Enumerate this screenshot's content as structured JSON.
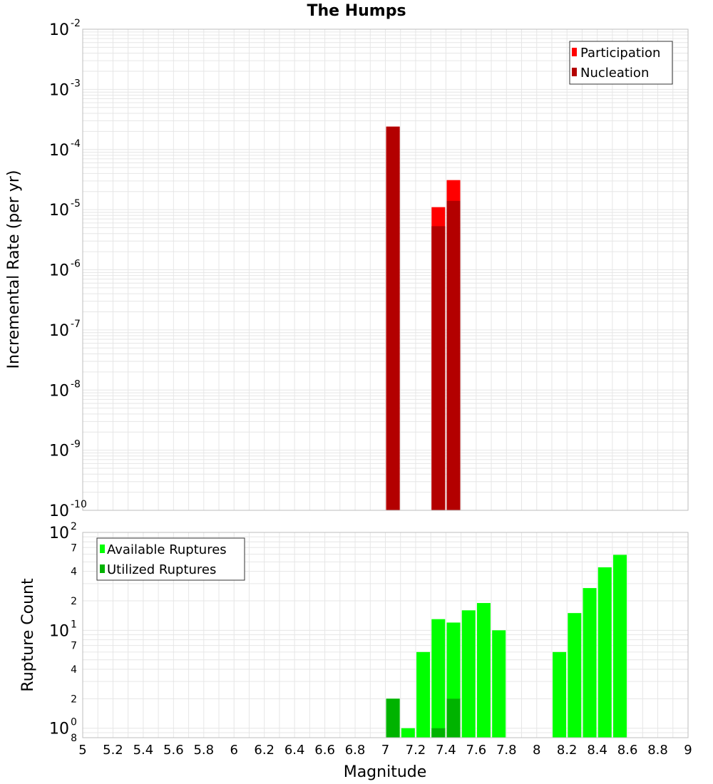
{
  "colors": {
    "participation": "#ff0000",
    "nucleation": "#b30000",
    "available": "#00ff00",
    "utilized": "#00b300",
    "grid": "#e6e6e6",
    "frame": "#bdbdbd"
  },
  "chart_data": [
    {
      "type": "bar",
      "title": "The Humps",
      "xlabel": "Magnitude",
      "ylabel": "Incremental Rate (per yr)",
      "yscale": "log",
      "ylim": [
        1e-10,
        0.01
      ],
      "xlim": [
        5,
        9
      ],
      "grid": true,
      "legend_position": "top-right",
      "y_tick_labels": [
        {
          "value": 0.01,
          "base": "10",
          "exp": "-2"
        },
        {
          "value": 0.001,
          "base": "10",
          "exp": "-3"
        },
        {
          "value": 0.0001,
          "base": "10",
          "exp": "-4"
        },
        {
          "value": 1e-05,
          "base": "10",
          "exp": "-5"
        },
        {
          "value": 1e-06,
          "base": "10",
          "exp": "-6"
        },
        {
          "value": 1e-07,
          "base": "10",
          "exp": "-7"
        },
        {
          "value": 1e-08,
          "base": "10",
          "exp": "-8"
        },
        {
          "value": 1e-09,
          "base": "10",
          "exp": "-9"
        },
        {
          "value": 1e-10,
          "base": "10",
          "exp": "-10"
        }
      ],
      "series": [
        {
          "name": "Participation",
          "color": "#ff0000",
          "x": [
            7.05,
            7.35,
            7.45
          ],
          "values": [
            0.00024,
            1.1e-05,
            3.1e-05
          ]
        },
        {
          "name": "Nucleation",
          "color": "#b30000",
          "x": [
            7.05,
            7.35,
            7.45
          ],
          "values": [
            0.00024,
            5.3e-06,
            1.4e-05
          ]
        }
      ]
    },
    {
      "type": "bar",
      "ylabel": "Rupture Count",
      "xlabel": "Magnitude",
      "yscale": "log",
      "ylim": [
        0.8,
        100
      ],
      "xlim": [
        5,
        9
      ],
      "grid": true,
      "legend_position": "top-left",
      "y_tick_labels": [
        {
          "value": 100,
          "base": "10",
          "exp": "2"
        },
        {
          "value": 10,
          "base": "10",
          "exp": "1"
        },
        {
          "value": 1,
          "base": "10",
          "exp": "0"
        }
      ],
      "y_minor_tick_labels": [
        {
          "value": 70,
          "label": "7"
        },
        {
          "value": 40,
          "label": "4"
        },
        {
          "value": 20,
          "label": "2"
        },
        {
          "value": 7,
          "label": "7"
        },
        {
          "value": 4,
          "label": "4"
        },
        {
          "value": 2,
          "label": "2"
        },
        {
          "value": 0.8,
          "label": "8"
        }
      ],
      "x_ticks": [
        "5",
        "5.2",
        "5.4",
        "5.6",
        "5.8",
        "6",
        "6.2",
        "6.4",
        "6.6",
        "6.8",
        "7",
        "7.2",
        "7.4",
        "7.6",
        "7.8",
        "8",
        "8.2",
        "8.4",
        "8.6",
        "8.8",
        "9"
      ],
      "series": [
        {
          "name": "Available Ruptures",
          "color": "#00ff00",
          "x": [
            7.05,
            7.15,
            7.25,
            7.35,
            7.45,
            7.55,
            7.65,
            7.75,
            8.15,
            8.25,
            8.35,
            8.45,
            8.55
          ],
          "values": [
            2,
            1,
            6,
            13,
            12,
            16,
            19,
            10,
            6,
            15,
            27,
            44,
            59
          ]
        },
        {
          "name": "Utilized Ruptures",
          "color": "#00b300",
          "x": [
            7.05,
            7.35,
            7.45
          ],
          "values": [
            2,
            1,
            2
          ]
        }
      ]
    }
  ]
}
